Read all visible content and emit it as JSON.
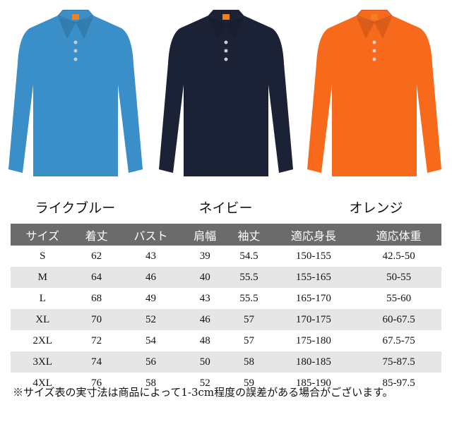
{
  "colors": [
    {
      "label": "ライクブルー",
      "hex": "#3a8fc8"
    },
    {
      "label": "ネイビー",
      "hex": "#1c2236"
    },
    {
      "label": "オレンジ",
      "hex": "#f76a1c"
    }
  ],
  "table": {
    "headers": [
      "サイズ",
      "着丈",
      "バスト",
      "肩幅",
      "袖丈",
      "適応身長",
      "適応体重"
    ],
    "rows": [
      [
        "S",
        "62",
        "43",
        "39",
        "54.5",
        "150-155",
        "42.5-50"
      ],
      [
        "M",
        "64",
        "46",
        "40",
        "55.5",
        "155-165",
        "50-55"
      ],
      [
        "L",
        "68",
        "49",
        "43",
        "55.5",
        "165-170",
        "55-60"
      ],
      [
        "XL",
        "70",
        "52",
        "46",
        "57",
        "170-175",
        "60-67.5"
      ],
      [
        "2XL",
        "72",
        "54",
        "48",
        "57",
        "175-180",
        "67.5-75"
      ],
      [
        "3XL",
        "74",
        "56",
        "50",
        "58",
        "180-185",
        "75-87.5"
      ],
      [
        "4XL",
        "76",
        "58",
        "52",
        "59",
        "185-190",
        "85-97.5"
      ]
    ]
  },
  "note": "※サイズ表の実寸法は商品によって1-3cm程度の誤差がある場合がございます。"
}
